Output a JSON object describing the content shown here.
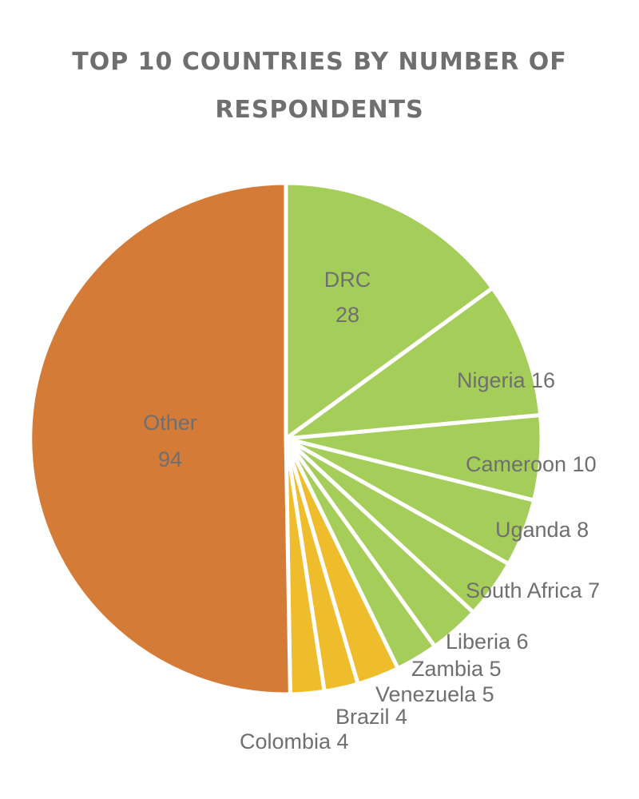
{
  "chart_data": {
    "type": "pie",
    "title": "TOP 10 COUNTRIES BY NUMBER OF RESPONDENTS",
    "title_lines": [
      "TOP 10 COUNTRIES BY NUMBER OF",
      "RESPONDENTS"
    ],
    "start_angle_deg": 0,
    "direction": "clockwise",
    "slices": [
      {
        "label": "DRC",
        "value": 28,
        "color": "#a5cd5a",
        "text": "DRC",
        "text2": "28"
      },
      {
        "label": "Nigeria",
        "value": 16,
        "color": "#a5cd5a",
        "text": "Nigeria 16"
      },
      {
        "label": "Cameroon",
        "value": 10,
        "color": "#a5cd5a",
        "text": "Cameroon 10"
      },
      {
        "label": "Uganda",
        "value": 8,
        "color": "#a5cd5a",
        "text": "Uganda 8"
      },
      {
        "label": "South Africa",
        "value": 7,
        "color": "#a5cd5a",
        "text": "South Africa 7"
      },
      {
        "label": "Liberia",
        "value": 6,
        "color": "#a5cd5a",
        "text": "Liberia 6"
      },
      {
        "label": "Zambia",
        "value": 5,
        "color": "#a5cd5a",
        "text": "Zambia 5"
      },
      {
        "label": "Venezuela",
        "value": 5,
        "color": "#efbd2c",
        "text": "Venezuela 5"
      },
      {
        "label": "Brazil",
        "value": 4,
        "color": "#efbd2c",
        "text": "Brazil 4"
      },
      {
        "label": "Colombia",
        "value": 4,
        "color": "#efbd2c",
        "text": "Colombia 4"
      },
      {
        "label": "Other",
        "value": 94,
        "color": "#d47b38",
        "text": "Other",
        "text2": "94"
      }
    ],
    "colors": {
      "africa": "#a5cd5a",
      "latin_america": "#efbd2c",
      "other": "#d47b38",
      "separator": "#ffffff",
      "label_text": "#6f6f6f"
    }
  }
}
